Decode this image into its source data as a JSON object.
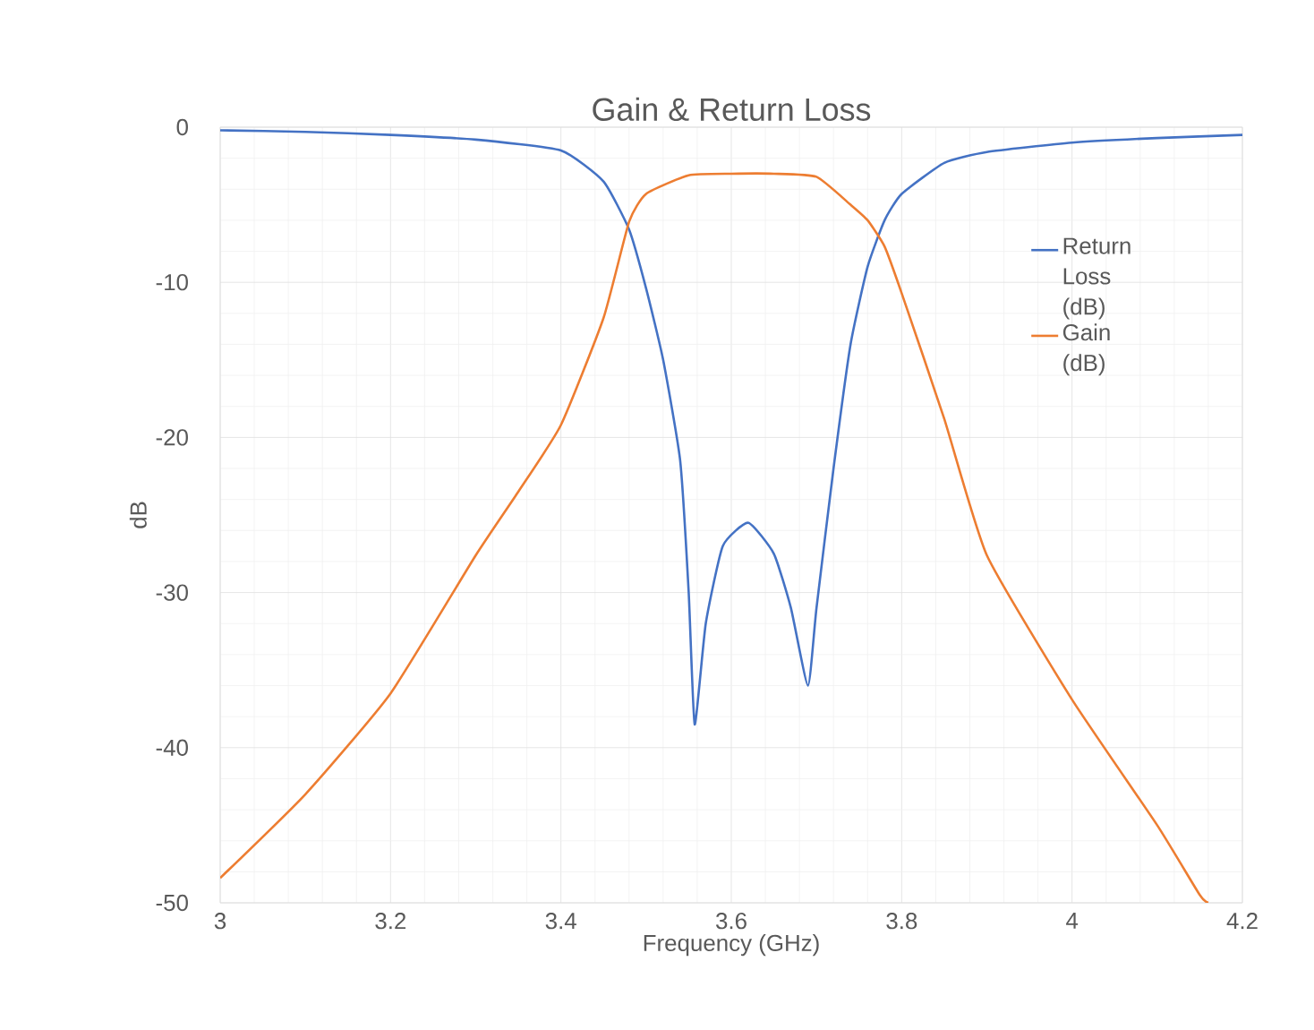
{
  "chart_data": {
    "type": "line",
    "title": "Gain & Return Loss",
    "xlabel": "Frequency (GHz)",
    "ylabel": "dB",
    "xlim": [
      3,
      4.2
    ],
    "xticks": [
      3,
      3.2,
      3.4,
      3.6,
      3.8,
      4,
      4.2
    ],
    "ylim": [
      -50,
      0
    ],
    "yticks": [
      -50,
      -40,
      -30,
      -20,
      -10,
      0
    ],
    "grid": true,
    "legend": "right",
    "series": [
      {
        "name": "Return Loss (dB)",
        "color": "#4472c4",
        "x": [
          3,
          3.1,
          3.2,
          3.3,
          3.4,
          3.45,
          3.48,
          3.5,
          3.52,
          3.54,
          3.55,
          3.557,
          3.57,
          3.59,
          3.62,
          3.65,
          3.67,
          3.69,
          3.7,
          3.72,
          3.74,
          3.76,
          3.78,
          3.8,
          3.85,
          3.9,
          4,
          4.1,
          4.2
        ],
        "values": [
          -0.2,
          -0.3,
          -0.5,
          -0.8,
          -1.5,
          -3.5,
          -6.6,
          -10.4,
          -15,
          -21.5,
          -30,
          -38.5,
          -32,
          -27,
          -25.5,
          -27.5,
          -31,
          -36,
          -31,
          -22,
          -14,
          -9,
          -6,
          -4.3,
          -2.3,
          -1.6,
          -1,
          -0.7,
          -0.5
        ]
      },
      {
        "name": "Gain (dB)",
        "color": "#ed7d31",
        "x": [
          3,
          3.1,
          3.2,
          3.3,
          3.35,
          3.4,
          3.45,
          3.48,
          3.5,
          3.55,
          3.6,
          3.65,
          3.7,
          3.74,
          3.76,
          3.78,
          3.8,
          3.85,
          3.9,
          4,
          4.1,
          4.15,
          4.16
        ],
        "values": [
          -48.4,
          -43,
          -36.5,
          -27.6,
          -23.5,
          -19.2,
          -12.3,
          -6.1,
          -4.3,
          -3.1,
          -3,
          -3,
          -3.2,
          -5,
          -6,
          -7.7,
          -10.7,
          -18.8,
          -27.6,
          -36.9,
          -45,
          -49.5,
          -50
        ]
      }
    ]
  }
}
